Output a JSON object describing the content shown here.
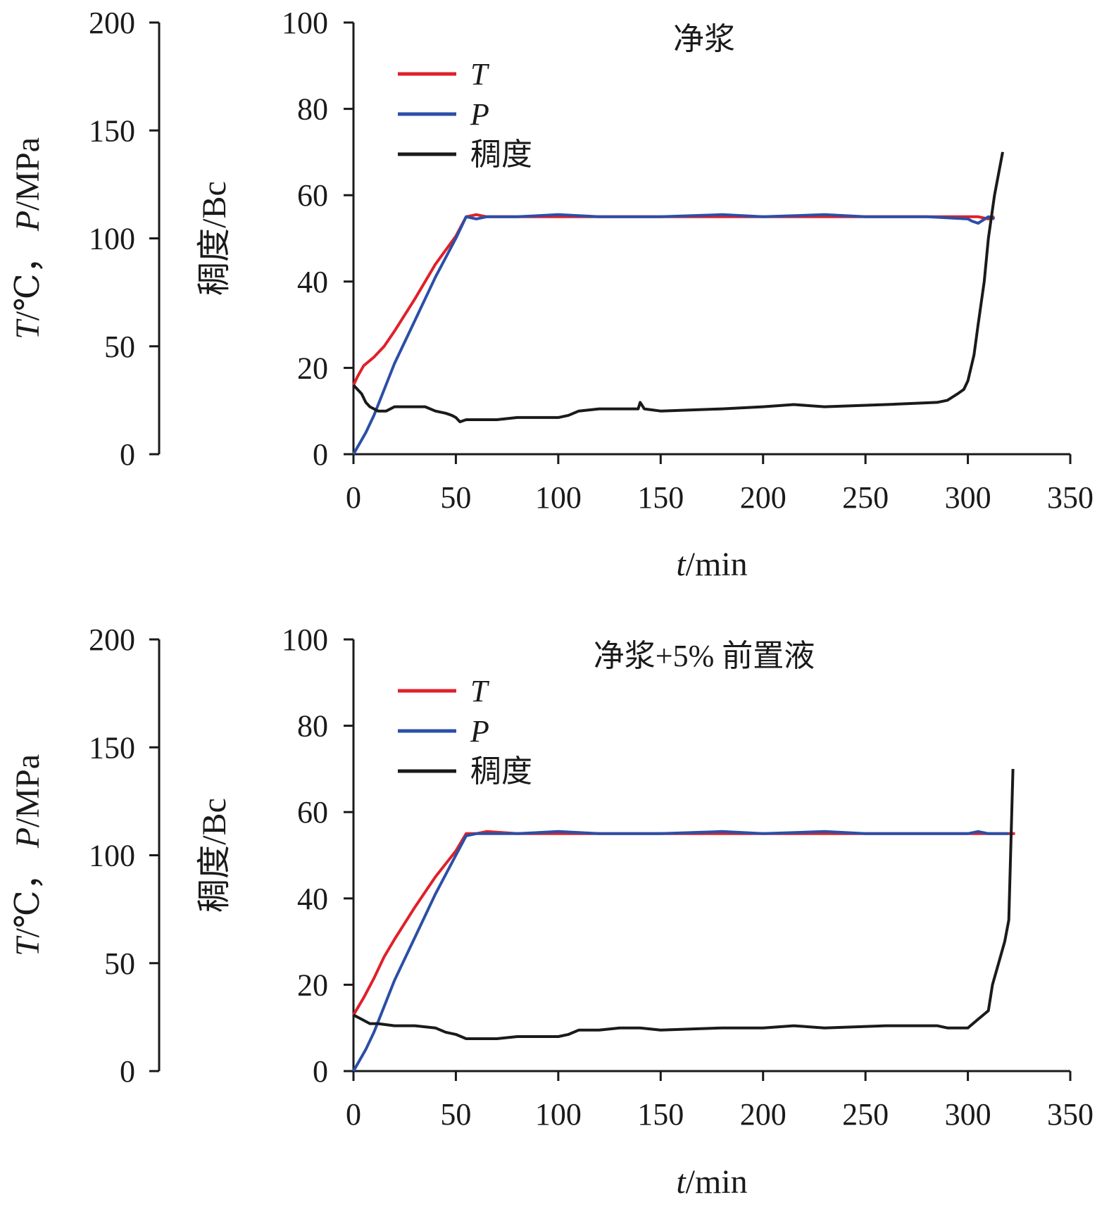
{
  "colors": {
    "T": "#e0202a",
    "P": "#2b4fa6",
    "consistency": "#1a1a1a"
  },
  "chart_data": [
    {
      "type": "line",
      "title": "净浆",
      "xlabel_italic": "t",
      "xlabel_rest": "/min",
      "xlim": [
        0,
        350
      ],
      "x_ticks": [
        "0",
        "50",
        "100",
        "150",
        "200",
        "250",
        "300",
        "350"
      ],
      "left_axis": {
        "label_T_italic": "T",
        "label_T_rest": "/℃，",
        "label_P_italic": "P",
        "label_P_rest": "/MPa",
        "ylim": [
          0,
          200
        ],
        "ticks": [
          "0",
          "50",
          "100",
          "150",
          "200"
        ]
      },
      "right_axis": {
        "label": "稠度/Bc",
        "ylim": [
          0,
          100
        ],
        "ticks": [
          "0",
          "20",
          "40",
          "60",
          "80",
          "100"
        ]
      },
      "legend": [
        "T",
        "P",
        "稠度"
      ],
      "grid": false,
      "series": [
        {
          "name": "T",
          "axis": "left",
          "color_key": "T",
          "x": [
            0,
            2,
            5,
            10,
            15,
            20,
            30,
            40,
            50,
            55,
            60,
            65,
            80,
            100,
            150,
            200,
            250,
            300,
            305,
            310,
            313
          ],
          "y": [
            32,
            36,
            41,
            45,
            50,
            57,
            72,
            88,
            101,
            110,
            111,
            110,
            110,
            110,
            110,
            110,
            110,
            110,
            110,
            109,
            110
          ]
        },
        {
          "name": "P",
          "axis": "left",
          "color_key": "P",
          "x": [
            0,
            3,
            6,
            10,
            20,
            30,
            40,
            50,
            55,
            60,
            65,
            80,
            100,
            120,
            150,
            180,
            200,
            230,
            250,
            280,
            300,
            302,
            305,
            310,
            313
          ],
          "y": [
            0,
            5,
            10,
            18,
            42,
            62,
            82,
            100,
            110,
            109,
            110,
            110,
            111,
            110,
            110,
            111,
            110,
            111,
            110,
            110,
            109,
            108,
            107,
            110,
            109
          ]
        },
        {
          "name": "稠度",
          "axis": "right",
          "color_key": "consistency",
          "x": [
            0,
            4,
            6,
            8,
            10,
            12,
            16,
            20,
            25,
            30,
            35,
            40,
            45,
            48,
            50,
            52,
            55,
            60,
            70,
            80,
            100,
            105,
            110,
            120,
            130,
            139,
            140,
            142,
            150,
            180,
            200,
            215,
            230,
            260,
            285,
            290,
            295,
            298,
            300,
            303,
            305,
            308,
            310,
            313,
            317
          ],
          "y": [
            16,
            14,
            12,
            11,
            10.5,
            10,
            10,
            11,
            11,
            11,
            11,
            10,
            9.5,
            9,
            8.5,
            7.5,
            8,
            8,
            8,
            8.5,
            8.5,
            9,
            10,
            10.5,
            10.5,
            10.5,
            12,
            10.5,
            10,
            10.5,
            11,
            11.5,
            11,
            11.5,
            12,
            12.5,
            14,
            15,
            17,
            23,
            30,
            40,
            50,
            60,
            70
          ]
        }
      ]
    },
    {
      "type": "line",
      "title": "净浆+5% 前置液",
      "xlabel_italic": "t",
      "xlabel_rest": "/min",
      "xlim": [
        0,
        350
      ],
      "x_ticks": [
        "0",
        "50",
        "100",
        "150",
        "200",
        "250",
        "300",
        "350"
      ],
      "left_axis": {
        "label_T_italic": "T",
        "label_T_rest": "/℃，",
        "label_P_italic": "P",
        "label_P_rest": "/MPa",
        "ylim": [
          0,
          200
        ],
        "ticks": [
          "0",
          "50",
          "100",
          "150",
          "200"
        ]
      },
      "right_axis": {
        "label": "稠度/Bc",
        "ylim": [
          0,
          100
        ],
        "ticks": [
          "0",
          "20",
          "40",
          "60",
          "80",
          "100"
        ]
      },
      "legend": [
        "T",
        "P",
        "稠度"
      ],
      "grid": false,
      "series": [
        {
          "name": "T",
          "axis": "left",
          "color_key": "T",
          "x": [
            0,
            5,
            10,
            15,
            20,
            30,
            40,
            50,
            55,
            60,
            65,
            80,
            100,
            150,
            200,
            250,
            300,
            310,
            320,
            323
          ],
          "y": [
            26,
            34,
            43,
            53,
            61,
            76,
            90,
            102,
            110,
            110,
            111,
            110,
            110,
            110,
            110,
            110,
            110,
            110,
            110,
            110
          ]
        },
        {
          "name": "P",
          "axis": "left",
          "color_key": "P",
          "x": [
            0,
            3,
            6,
            10,
            20,
            30,
            40,
            50,
            55,
            60,
            70,
            80,
            100,
            120,
            150,
            180,
            200,
            230,
            250,
            280,
            300,
            305,
            310,
            315,
            320
          ],
          "y": [
            0,
            5,
            10,
            18,
            42,
            62,
            82,
            100,
            109,
            110,
            110,
            110,
            111,
            110,
            110,
            111,
            110,
            111,
            110,
            110,
            110,
            111,
            110,
            110,
            110
          ]
        },
        {
          "name": "稠度",
          "axis": "right",
          "color_key": "consistency",
          "x": [
            0,
            4,
            8,
            12,
            20,
            30,
            40,
            45,
            50,
            55,
            60,
            70,
            80,
            100,
            105,
            110,
            120,
            130,
            140,
            150,
            180,
            200,
            215,
            230,
            260,
            285,
            290,
            300,
            305,
            310,
            312,
            315,
            318,
            320,
            322
          ],
          "y": [
            13,
            12,
            11,
            11,
            10.5,
            10.5,
            10,
            9,
            8.5,
            7.5,
            7.5,
            7.5,
            8,
            8,
            8.5,
            9.5,
            9.5,
            10,
            10,
            9.5,
            10,
            10,
            10.5,
            10,
            10.5,
            10.5,
            10,
            10,
            12,
            14,
            20,
            25,
            30,
            35,
            70
          ]
        }
      ]
    }
  ]
}
